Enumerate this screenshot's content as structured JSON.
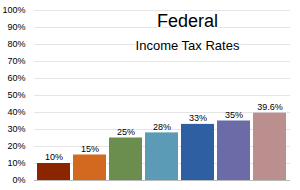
{
  "chart_data": {
    "type": "bar",
    "title": "Federal",
    "subtitle": "Income Tax Rates",
    "categories": [
      null,
      null,
      null,
      null,
      null,
      null,
      null
    ],
    "values": [
      10,
      15,
      25,
      28,
      33,
      35,
      39.6
    ],
    "value_labels": [
      "10%",
      "15%",
      "25%",
      "28%",
      "33%",
      "35%",
      "39.6%"
    ],
    "colors": [
      "#8B2500",
      "#D2691E",
      "#6B8E4E",
      "#5B9BB5",
      "#2E5FA3",
      "#6B6BA8",
      "#BC8F8F"
    ],
    "ylim": [
      0,
      100
    ],
    "yticks": [
      {
        "value": 0,
        "label": "0%"
      },
      {
        "value": 10,
        "label": "10%"
      },
      {
        "value": 20,
        "label": "20%"
      },
      {
        "value": 30,
        "label": "30%"
      },
      {
        "value": 40,
        "label": "40%"
      },
      {
        "value": 50,
        "label": "50%"
      },
      {
        "value": 60,
        "label": "60%"
      },
      {
        "value": 70,
        "label": "70%"
      },
      {
        "value": 80,
        "label": "80%"
      },
      {
        "value": 90,
        "label": "90%"
      },
      {
        "value": 100,
        "label": "100%"
      }
    ],
    "grid": true,
    "data_labels": true,
    "tick_labels": "y"
  }
}
